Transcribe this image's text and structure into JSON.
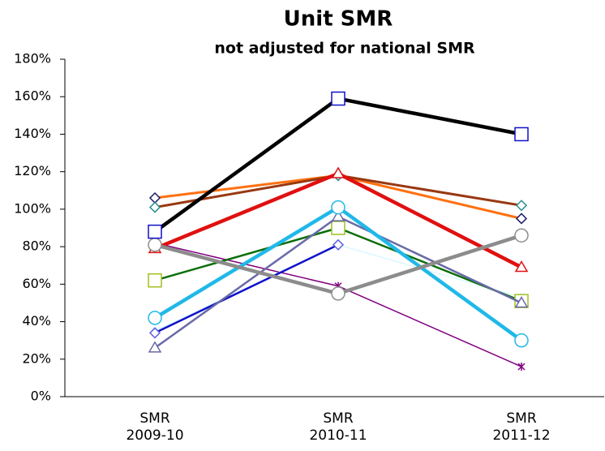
{
  "chart_data": {
    "type": "line",
    "title": "Unit SMR",
    "subtitle": "not adjusted for national SMR",
    "categories": [
      "SMR\n2009-10",
      "SMR\n2010-11",
      "SMR\n2011-12"
    ],
    "ylim": [
      0,
      180
    ],
    "yticks": [
      {
        "value": 0,
        "label": "0%"
      },
      {
        "value": 20,
        "label": "20%"
      },
      {
        "value": 40,
        "label": "40%"
      },
      {
        "value": 60,
        "label": "60%"
      },
      {
        "value": 80,
        "label": "80%"
      },
      {
        "value": 100,
        "label": "100%"
      },
      {
        "value": 120,
        "label": "120%"
      },
      {
        "value": 140,
        "label": "140%"
      },
      {
        "value": 160,
        "label": "160%"
      },
      {
        "value": 180,
        "label": "180%"
      }
    ],
    "series": [
      {
        "color": "#800080",
        "marker": "star",
        "marker_color": "#800080",
        "width": 1.5,
        "values": [
          82,
          59,
          16
        ]
      },
      {
        "color": "#d8f8ff",
        "marker": "circle",
        "marker_color": "#d8f8ff",
        "width": 1.5,
        "values": [
          35,
          81,
          53
        ]
      },
      {
        "color": "#1010c8",
        "marker": "diamond",
        "marker_color": "#6060e0",
        "width": 2.5,
        "values": [
          34,
          81,
          null
        ]
      },
      {
        "color": "#0a6e0a",
        "marker": "square",
        "marker_color": "#a0c020",
        "width": 2.5,
        "values": [
          62,
          90,
          51
        ]
      },
      {
        "color": "#6a6aa8",
        "marker": "triangle",
        "marker_color": "#6a6aa8",
        "width": 2.5,
        "values": [
          26,
          96,
          50
        ]
      },
      {
        "color": "#ff7010",
        "marker": "diamond",
        "marker_color": "#1c1c70",
        "width": 3,
        "values": [
          106,
          118,
          95
        ]
      },
      {
        "color": "#983810",
        "marker": "diamond",
        "marker_color": "#2a9090",
        "width": 3,
        "values": [
          101,
          118,
          102
        ]
      },
      {
        "color": "#e01010",
        "marker": "triangle",
        "marker_color": "#e01010",
        "width": 4.5,
        "values": [
          79,
          119,
          69
        ]
      },
      {
        "color": "#20b8e8",
        "marker": "circle",
        "marker_color": "#20b8e8",
        "width": 4.5,
        "values": [
          42,
          101,
          30
        ]
      },
      {
        "color": "#8c8c8c",
        "marker": "circle",
        "marker_color": "#8c8c8c",
        "width": 4.5,
        "values": [
          81,
          55,
          86
        ]
      },
      {
        "color": "#000000",
        "marker": "square",
        "marker_color": "#1010c8",
        "width": 4.5,
        "values": [
          88,
          159,
          140
        ]
      }
    ]
  }
}
